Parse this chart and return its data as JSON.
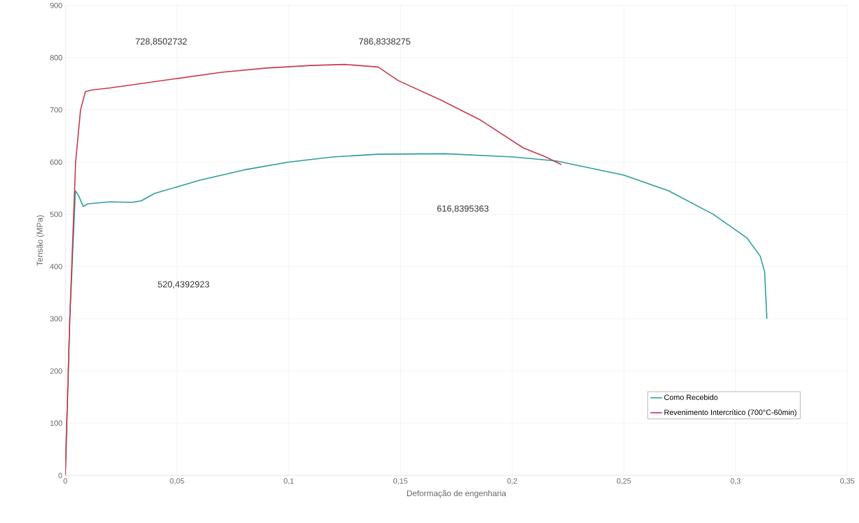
{
  "chart_data": {
    "type": "line",
    "xlabel": "Deformação de engenharia",
    "ylabel": "Tensão (MPa)",
    "x": [
      0,
      0.002,
      0.0046,
      0.0068,
      0.009,
      0.012,
      0.02,
      0.03,
      0.05,
      0.07,
      0.09,
      0.11,
      0.125,
      0.14,
      0.149,
      0.168,
      0.186,
      0.205,
      0.215,
      0.222
    ],
    "series": [
      {
        "name": "Como Recebido",
        "color": "#2a9d9a",
        "x": [
          0,
          0.002,
          0.0045,
          0.006,
          0.008,
          0.01,
          0.02,
          0.03,
          0.034,
          0.04,
          0.06,
          0.08,
          0.1,
          0.12,
          0.14,
          0.17,
          0.2,
          0.22,
          0.25,
          0.27,
          0.29,
          0.305,
          0.311,
          0.313,
          0.314
        ],
        "values": [
          0,
          300,
          545,
          535,
          515,
          520,
          524,
          523,
          526,
          540,
          565,
          585,
          600,
          610,
          615,
          616,
          610,
          602,
          575,
          545,
          500,
          455,
          420,
          390,
          300
        ]
      },
      {
        "name": "Revenimento Intercrítico (700°C-60min)",
        "color": "#c8374a",
        "values": [
          0,
          300,
          600,
          700,
          735,
          738,
          742,
          748,
          760,
          772,
          780,
          785,
          787,
          782,
          756,
          719,
          680,
          627,
          610,
          595
        ]
      }
    ],
    "xlim": [
      0,
      0.35
    ],
    "ylim": [
      0,
      900
    ],
    "xticks": [
      0,
      {
        "value": 0.05,
        "label": "0,05"
      },
      {
        "value": 0.1,
        "label": "0,1"
      },
      {
        "value": 0.15,
        "label": "0,15"
      },
      {
        "value": 0.2,
        "label": "0,2"
      },
      {
        "value": 0.25,
        "label": "0,25"
      },
      {
        "value": 0.3,
        "label": "0,3"
      },
      {
        "value": 0.35,
        "label": "0,35"
      }
    ],
    "yticks": [
      0,
      100,
      200,
      300,
      400,
      500,
      600,
      700,
      800,
      900
    ],
    "annotations": [
      "728,8502732",
      "786,8338275",
      "616,8395363",
      "520,4392923"
    ],
    "grid": true,
    "legend": "bottom right",
    "line_style": "solid",
    "marker": "none"
  }
}
